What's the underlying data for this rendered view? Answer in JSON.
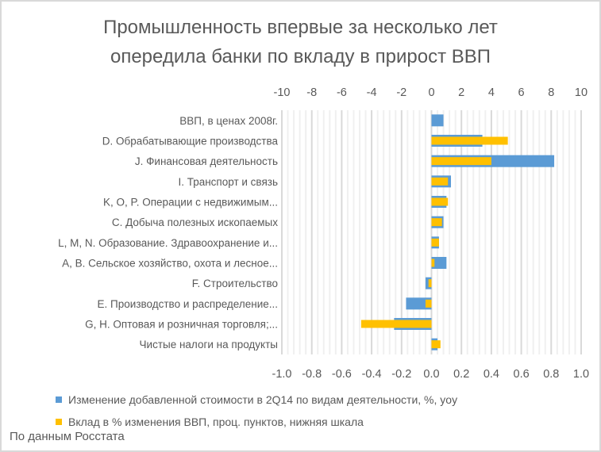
{
  "chart_data": {
    "type": "bar",
    "orientation": "horizontal",
    "title": "Промышленность впервые за несколько лет опередила банки по вкладу в прирост ВВП",
    "title_lines": [
      "Промышленность впервые за несколько лет",
      "опередила банки по вкладу в прирост ВВП"
    ],
    "categories": [
      "ВВП, в ценах 2008г.",
      "D. Обрабатывающие производства",
      "J. Финансовая деятельность",
      "I. Транспорт и связь",
      "K, O, P. Операции с недвижимым...",
      "C. Добыча полезных ископаемых",
      "L, M, N. Образование. Здравоохранение и...",
      "A, B. Сельское хозяйство, охота и лесное...",
      "F. Строительство",
      "E. Производство и распределение...",
      "G, H. Оптовая и розничная торговля;...",
      "Чистые налоги на продукты"
    ],
    "series": [
      {
        "name": "Изменение добавленной стоимости в 2Q14 по видам деятельности, %, yoy",
        "axis": "top",
        "color": "#5b9bd5",
        "values": [
          0.8,
          3.4,
          8.2,
          1.3,
          1.0,
          0.8,
          0.5,
          1.0,
          -0.4,
          -1.7,
          -2.5,
          0.4
        ]
      },
      {
        "name": "Вклад в % изменения ВВП, проц. пунктов, нижняя шкала",
        "axis": "bottom",
        "color": "#ffc000",
        "values": [
          0.0,
          0.51,
          0.4,
          0.11,
          0.11,
          0.07,
          0.05,
          0.02,
          -0.02,
          -0.04,
          -0.47,
          0.06
        ]
      }
    ],
    "top_axis": {
      "range": [
        -10,
        10
      ],
      "ticks": [
        "-10",
        "-8",
        "-6",
        "-4",
        "-2",
        "0",
        "2",
        "4",
        "6",
        "8",
        "10"
      ]
    },
    "bottom_axis": {
      "range": [
        -1.0,
        1.0
      ],
      "ticks": [
        "-1.0",
        "-0.8",
        "-0.6",
        "-0.4",
        "-0.2",
        "0.0",
        "0.2",
        "0.4",
        "0.6",
        "0.8",
        "1.0"
      ]
    },
    "grid": true,
    "legend_position": "bottom"
  },
  "source_note": "По данным Росстата"
}
